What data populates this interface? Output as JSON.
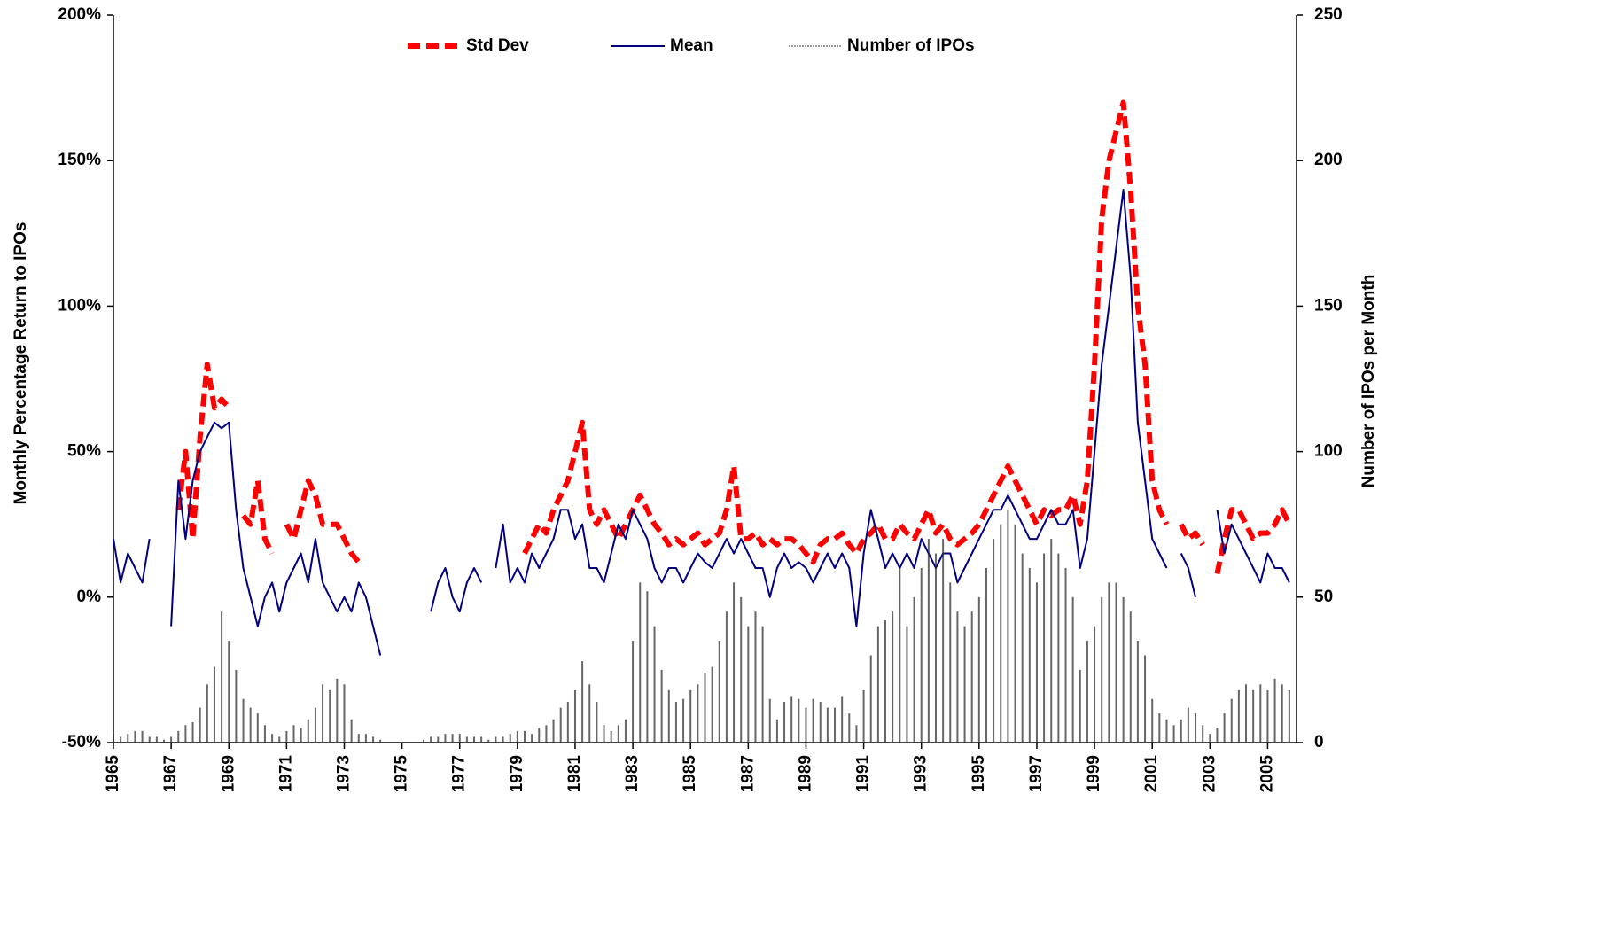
{
  "chart_data": {
    "type": "line",
    "y_label": "Monthly Percentage Return to IPOs",
    "y2_label": "Number of IPOs per Month",
    "legend": "top",
    "x": [
      1965,
      1965.25,
      1965.5,
      1965.75,
      1966,
      1966.25,
      1966.5,
      1966.75,
      1967,
      1967.25,
      1967.5,
      1967.75,
      1968,
      1968.25,
      1968.5,
      1968.75,
      1969,
      1969.25,
      1969.5,
      1969.75,
      1970,
      1970.25,
      1970.5,
      1970.75,
      1971,
      1971.25,
      1971.5,
      1971.75,
      1972,
      1972.25,
      1972.5,
      1972.75,
      1973,
      1973.25,
      1973.5,
      1973.75,
      1974,
      1974.25,
      1974.5,
      1974.75,
      1975,
      1975.25,
      1975.5,
      1975.75,
      1976,
      1976.25,
      1976.5,
      1976.75,
      1977,
      1977.25,
      1977.5,
      1977.75,
      1978,
      1978.25,
      1978.5,
      1978.75,
      1979,
      1979.25,
      1979.5,
      1979.75,
      1980,
      1980.25,
      1980.5,
      1980.75,
      1981,
      1981.25,
      1981.5,
      1981.75,
      1982,
      1982.25,
      1982.5,
      1982.75,
      1983,
      1983.25,
      1983.5,
      1983.75,
      1984,
      1984.25,
      1984.5,
      1984.75,
      1985,
      1985.25,
      1985.5,
      1985.75,
      1986,
      1986.25,
      1986.5,
      1986.75,
      1987,
      1987.25,
      1987.5,
      1987.75,
      1988,
      1988.25,
      1988.5,
      1988.75,
      1989,
      1989.25,
      1989.5,
      1989.75,
      1990,
      1990.25,
      1990.5,
      1990.75,
      1991,
      1991.25,
      1991.5,
      1991.75,
      1992,
      1992.25,
      1992.5,
      1992.75,
      1993,
      1993.25,
      1993.5,
      1993.75,
      1994,
      1994.25,
      1994.5,
      1994.75,
      1995,
      1995.25,
      1995.5,
      1995.75,
      1996,
      1996.25,
      1996.5,
      1996.75,
      1997,
      1997.25,
      1997.5,
      1997.75,
      1998,
      1998.25,
      1998.5,
      1998.75,
      1999,
      1999.25,
      1999.5,
      1999.75,
      2000,
      2000.25,
      2000.5,
      2000.75,
      2001,
      2001.25,
      2001.5,
      2001.75,
      2002,
      2002.25,
      2002.5,
      2002.75,
      2003,
      2003.25,
      2003.5,
      2003.75,
      2004,
      2004.25,
      2004.5,
      2004.75,
      2005,
      2005.25,
      2005.5,
      2005.75
    ],
    "series": [
      {
        "name": "Std Dev",
        "color": "#ff0000",
        "dashed": true,
        "values": [
          null,
          null,
          null,
          null,
          25,
          null,
          null,
          null,
          null,
          30,
          50,
          20,
          55,
          80,
          65,
          68,
          65,
          null,
          28,
          25,
          40,
          20,
          15,
          null,
          25,
          20,
          30,
          40,
          35,
          25,
          25,
          25,
          20,
          15,
          12,
          null,
          20,
          null,
          null,
          null,
          null,
          null,
          null,
          null,
          null,
          null,
          null,
          null,
          null,
          null,
          null,
          null,
          null,
          null,
          null,
          null,
          null,
          15,
          20,
          25,
          22,
          30,
          35,
          40,
          50,
          60,
          30,
          25,
          30,
          25,
          20,
          25,
          30,
          35,
          30,
          25,
          22,
          18,
          20,
          18,
          20,
          22,
          18,
          20,
          22,
          30,
          45,
          20,
          20,
          22,
          18,
          20,
          18,
          20,
          20,
          18,
          15,
          12,
          18,
          20,
          20,
          22,
          18,
          15,
          20,
          22,
          25,
          20,
          20,
          25,
          22,
          20,
          25,
          30,
          22,
          25,
          20,
          18,
          20,
          22,
          25,
          30,
          35,
          40,
          45,
          40,
          35,
          30,
          25,
          30,
          28,
          30,
          30,
          35,
          25,
          40,
          80,
          130,
          150,
          160,
          170,
          140,
          100,
          80,
          40,
          30,
          25,
          null,
          25,
          20,
          22,
          18,
          null,
          8,
          20,
          30,
          30,
          25,
          20,
          22,
          22,
          25,
          30,
          25
        ]
      },
      {
        "name": "Mean",
        "color": "#000080",
        "values": [
          20,
          5,
          15,
          10,
          5,
          20,
          null,
          null,
          -10,
          40,
          20,
          40,
          50,
          55,
          60,
          58,
          60,
          30,
          10,
          0,
          -10,
          0,
          5,
          -5,
          5,
          10,
          15,
          5,
          20,
          5,
          0,
          -5,
          0,
          -5,
          5,
          0,
          -10,
          -20,
          null,
          null,
          null,
          null,
          null,
          null,
          -5,
          5,
          10,
          0,
          -5,
          5,
          10,
          5,
          null,
          10,
          25,
          5,
          10,
          5,
          15,
          10,
          15,
          20,
          30,
          30,
          20,
          25,
          10,
          10,
          5,
          15,
          25,
          20,
          30,
          25,
          20,
          10,
          5,
          10,
          10,
          5,
          10,
          15,
          12,
          10,
          15,
          20,
          15,
          20,
          15,
          10,
          10,
          0,
          10,
          15,
          10,
          12,
          10,
          5,
          10,
          15,
          10,
          15,
          10,
          -10,
          15,
          30,
          20,
          10,
          15,
          10,
          15,
          10,
          20,
          15,
          10,
          15,
          15,
          5,
          10,
          15,
          20,
          25,
          30,
          30,
          35,
          30,
          25,
          20,
          20,
          25,
          30,
          25,
          25,
          30,
          10,
          20,
          50,
          80,
          100,
          120,
          140,
          110,
          60,
          40,
          20,
          15,
          10,
          null,
          15,
          10,
          0,
          null,
          null,
          30,
          15,
          25,
          20,
          15,
          10,
          5,
          15,
          10,
          10,
          5
        ]
      },
      {
        "name": "Number of IPOs",
        "color": "#333333",
        "axis": "y2",
        "bars": true,
        "values": [
          3,
          2,
          3,
          4,
          4,
          2,
          2,
          1,
          2,
          4,
          6,
          7,
          12,
          20,
          26,
          45,
          35,
          25,
          15,
          12,
          10,
          6,
          3,
          2,
          4,
          6,
          5,
          8,
          12,
          20,
          18,
          22,
          20,
          8,
          3,
          3,
          2,
          1,
          0,
          0,
          0,
          0,
          0,
          1,
          2,
          2,
          3,
          3,
          3,
          2,
          2,
          2,
          1,
          2,
          2,
          3,
          4,
          4,
          3,
          5,
          6,
          8,
          12,
          14,
          18,
          28,
          20,
          14,
          6,
          4,
          6,
          8,
          35,
          55,
          52,
          40,
          25,
          18,
          14,
          15,
          18,
          20,
          24,
          26,
          35,
          45,
          55,
          50,
          40,
          45,
          40,
          15,
          8,
          14,
          16,
          15,
          12,
          15,
          14,
          12,
          12,
          16,
          10,
          6,
          18,
          30,
          40,
          42,
          45,
          60,
          40,
          50,
          60,
          70,
          65,
          70,
          55,
          45,
          40,
          45,
          50,
          60,
          70,
          75,
          80,
          75,
          65,
          60,
          55,
          65,
          70,
          65,
          60,
          50,
          25,
          35,
          40,
          50,
          55,
          55,
          50,
          45,
          35,
          30,
          15,
          10,
          8,
          6,
          8,
          12,
          10,
          6,
          3,
          5,
          10,
          15,
          18,
          20,
          18,
          20,
          18,
          22,
          20,
          18
        ]
      }
    ],
    "xlim": [
      1965,
      2006
    ],
    "xticks": [
      1965,
      1967,
      1969,
      1971,
      1973,
      1975,
      1977,
      1979,
      1981,
      1983,
      1985,
      1987,
      1989,
      1991,
      1993,
      1995,
      1997,
      1999,
      2001,
      2003,
      2005
    ],
    "ylim": [
      -50,
      200
    ],
    "yticks": [
      {
        "value": -50,
        "label": "-50%"
      },
      {
        "value": 0,
        "label": "0%"
      },
      {
        "value": 50,
        "label": "50%"
      },
      {
        "value": 100,
        "label": "100%"
      },
      {
        "value": 150,
        "label": "150%"
      },
      {
        "value": 200,
        "label": "200%"
      }
    ],
    "y2lim": [
      0,
      250
    ],
    "y2ticks": [
      0,
      50,
      100,
      150,
      200,
      250
    ]
  }
}
